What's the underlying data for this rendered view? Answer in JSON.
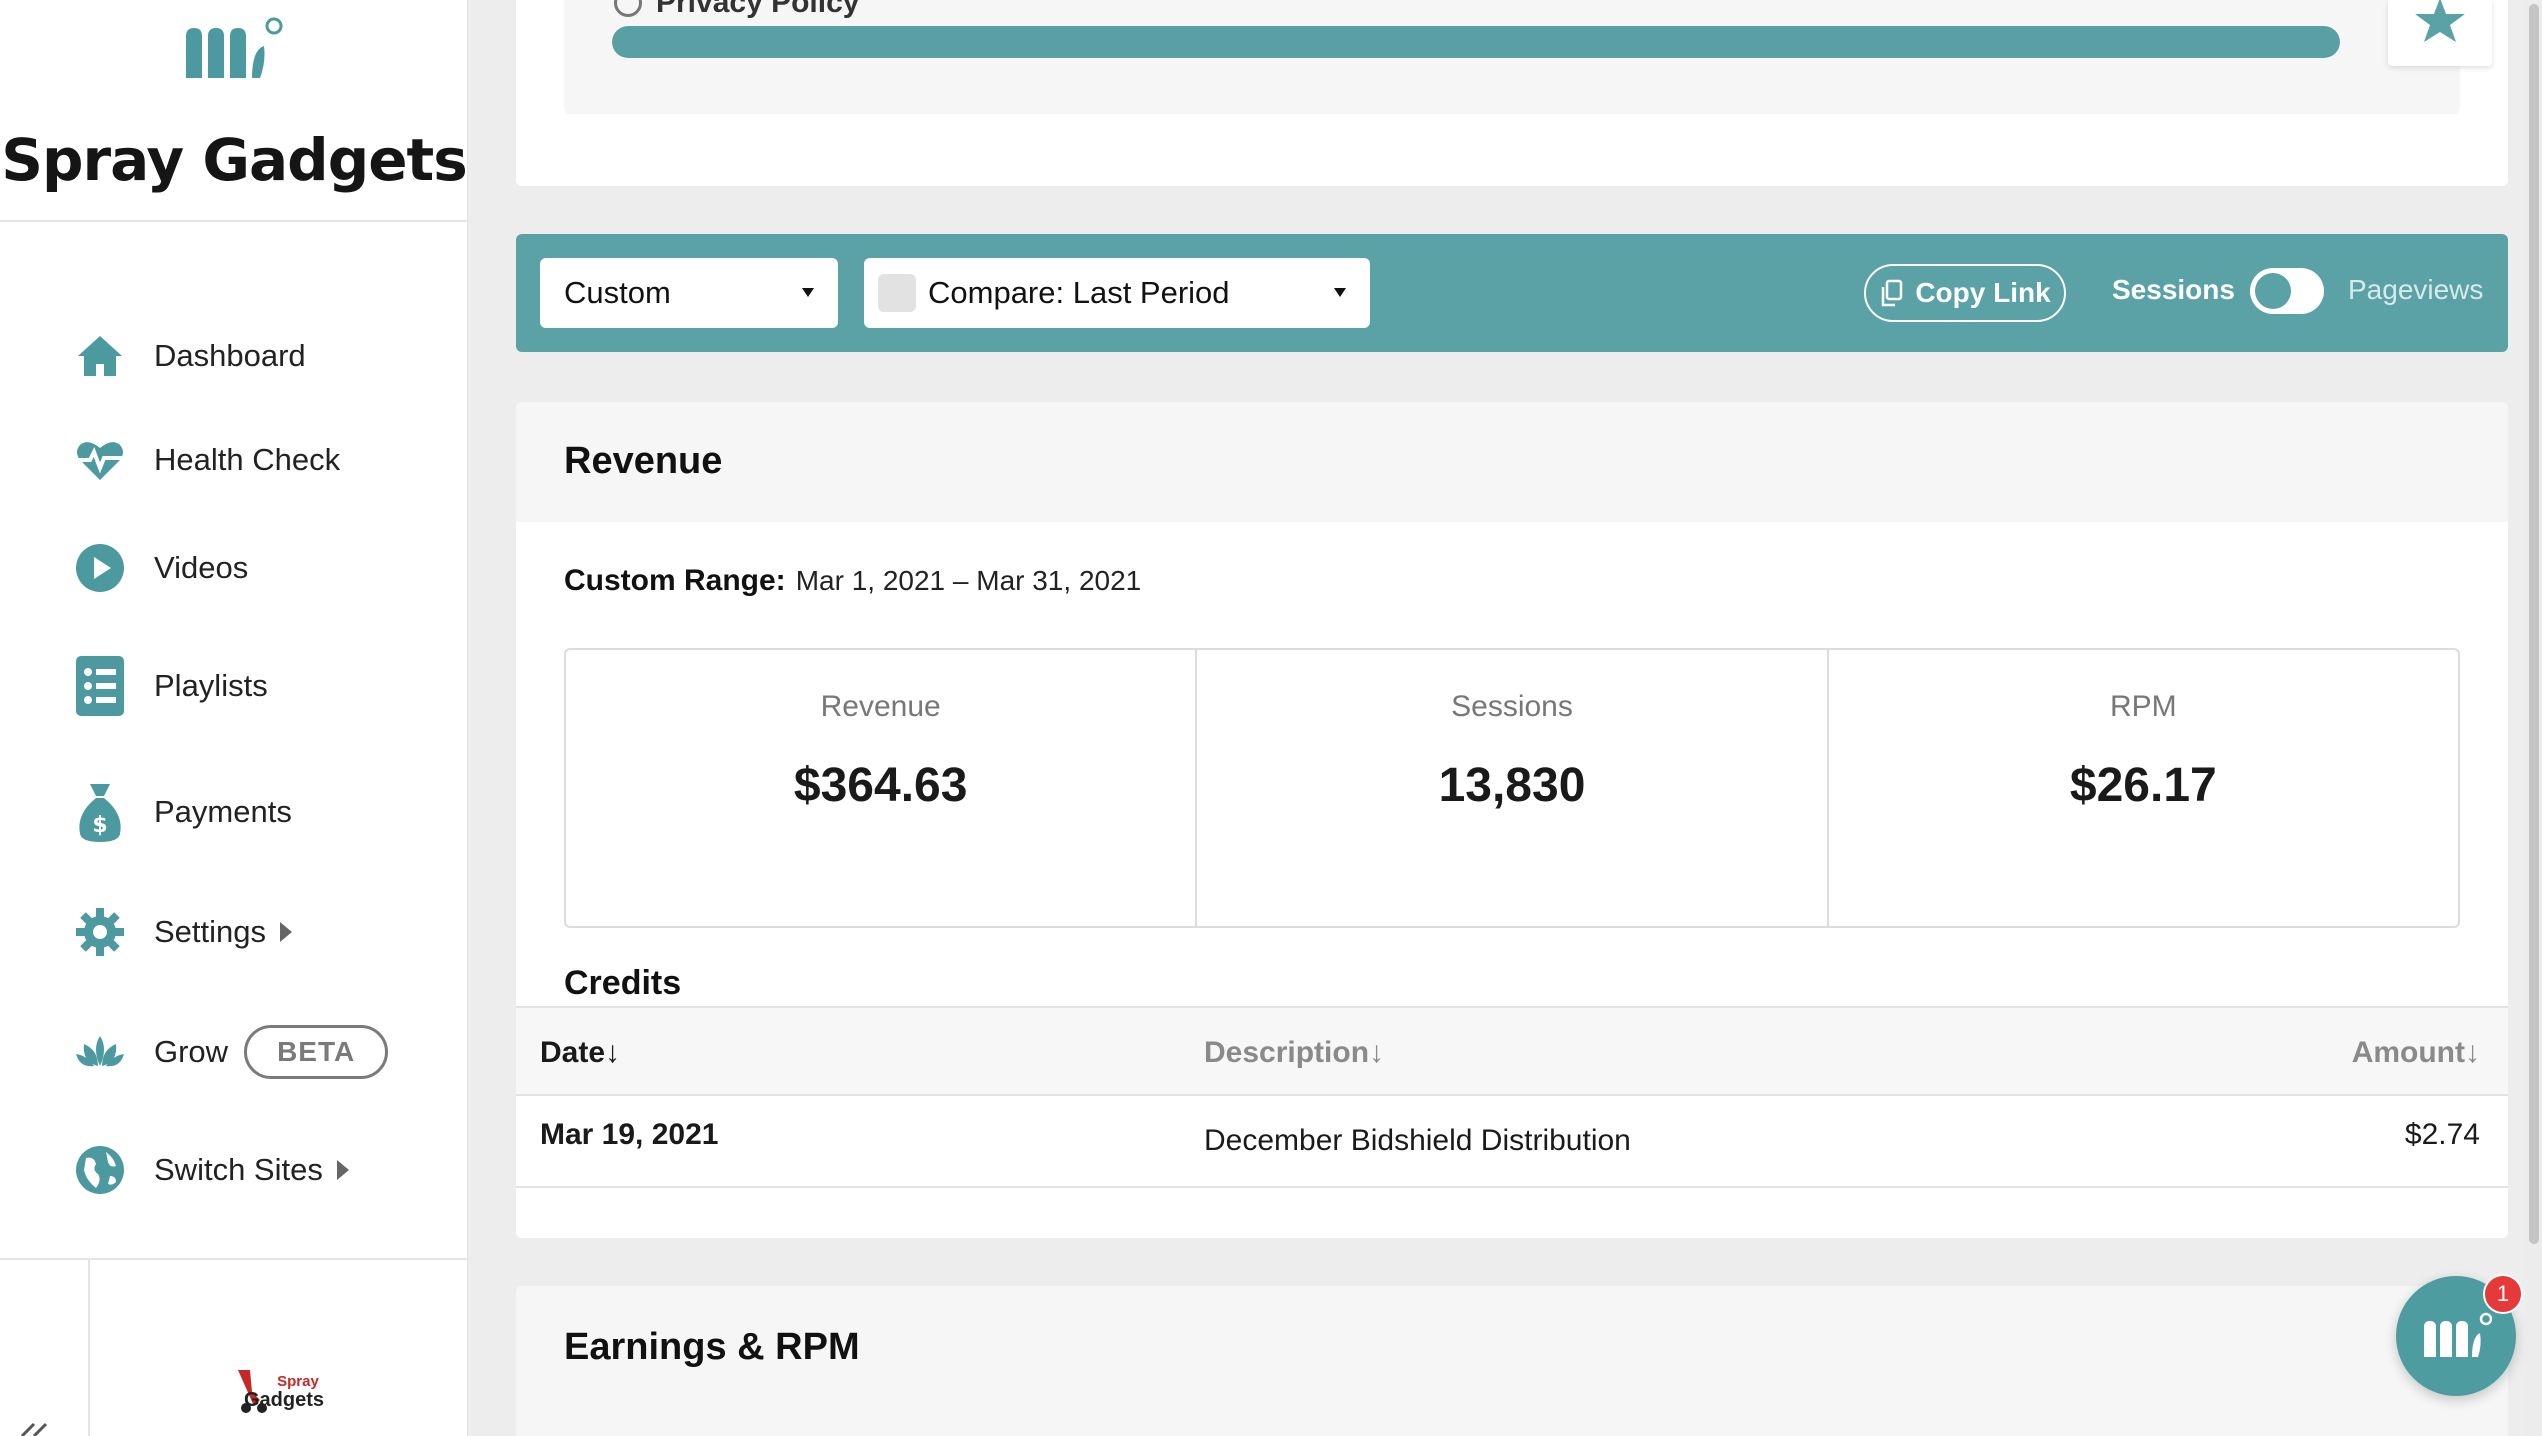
{
  "brand": {
    "name": "Spray Gadgets",
    "logo_icon": "mediavine-logo-icon"
  },
  "sidebar": {
    "items": [
      {
        "label": "Dashboard",
        "icon": "home-icon"
      },
      {
        "label": "Health Check",
        "icon": "heartbeat-icon"
      },
      {
        "label": "Videos",
        "icon": "play-circle-icon"
      },
      {
        "label": "Playlists",
        "icon": "list-icon"
      },
      {
        "label": "Payments",
        "icon": "money-bag-icon"
      },
      {
        "label": "Settings",
        "icon": "gear-icon"
      },
      {
        "label": "Grow",
        "icon": "lotus-icon",
        "badge": "BETA"
      },
      {
        "label": "Switch Sites",
        "icon": "globe-icon"
      }
    ],
    "site_thumb_text": "Spray Gadgets"
  },
  "top_card": {
    "policy_label": "Privacy Policy",
    "progress_fraction": 1.0
  },
  "filters": {
    "range_select": "Custom",
    "compare_select": "Compare: Last Period",
    "copy_link": "Copy Link",
    "toggle_left": "Sessions",
    "toggle_right": "Pageviews"
  },
  "revenue": {
    "title": "Revenue",
    "range_label": "Custom Range:",
    "range_value": "Mar 1, 2021 – Mar 31, 2021",
    "stats": [
      {
        "label": "Revenue",
        "value": "$364.63"
      },
      {
        "label": "Sessions",
        "value": "13,830"
      },
      {
        "label": "RPM",
        "value": "$26.17"
      }
    ],
    "credits": {
      "title": "Credits",
      "columns": [
        "Date↓",
        "Description↓",
        "Amount↓"
      ],
      "rows": [
        {
          "date": "Mar 19, 2021",
          "description": "December Bidshield Distribution",
          "amount": "$2.74"
        }
      ]
    }
  },
  "earnings": {
    "title": "Earnings & RPM"
  },
  "chat": {
    "badge_count": "1"
  },
  "colors": {
    "accent": "#5aa2a6",
    "badge": "#e63a3a"
  }
}
